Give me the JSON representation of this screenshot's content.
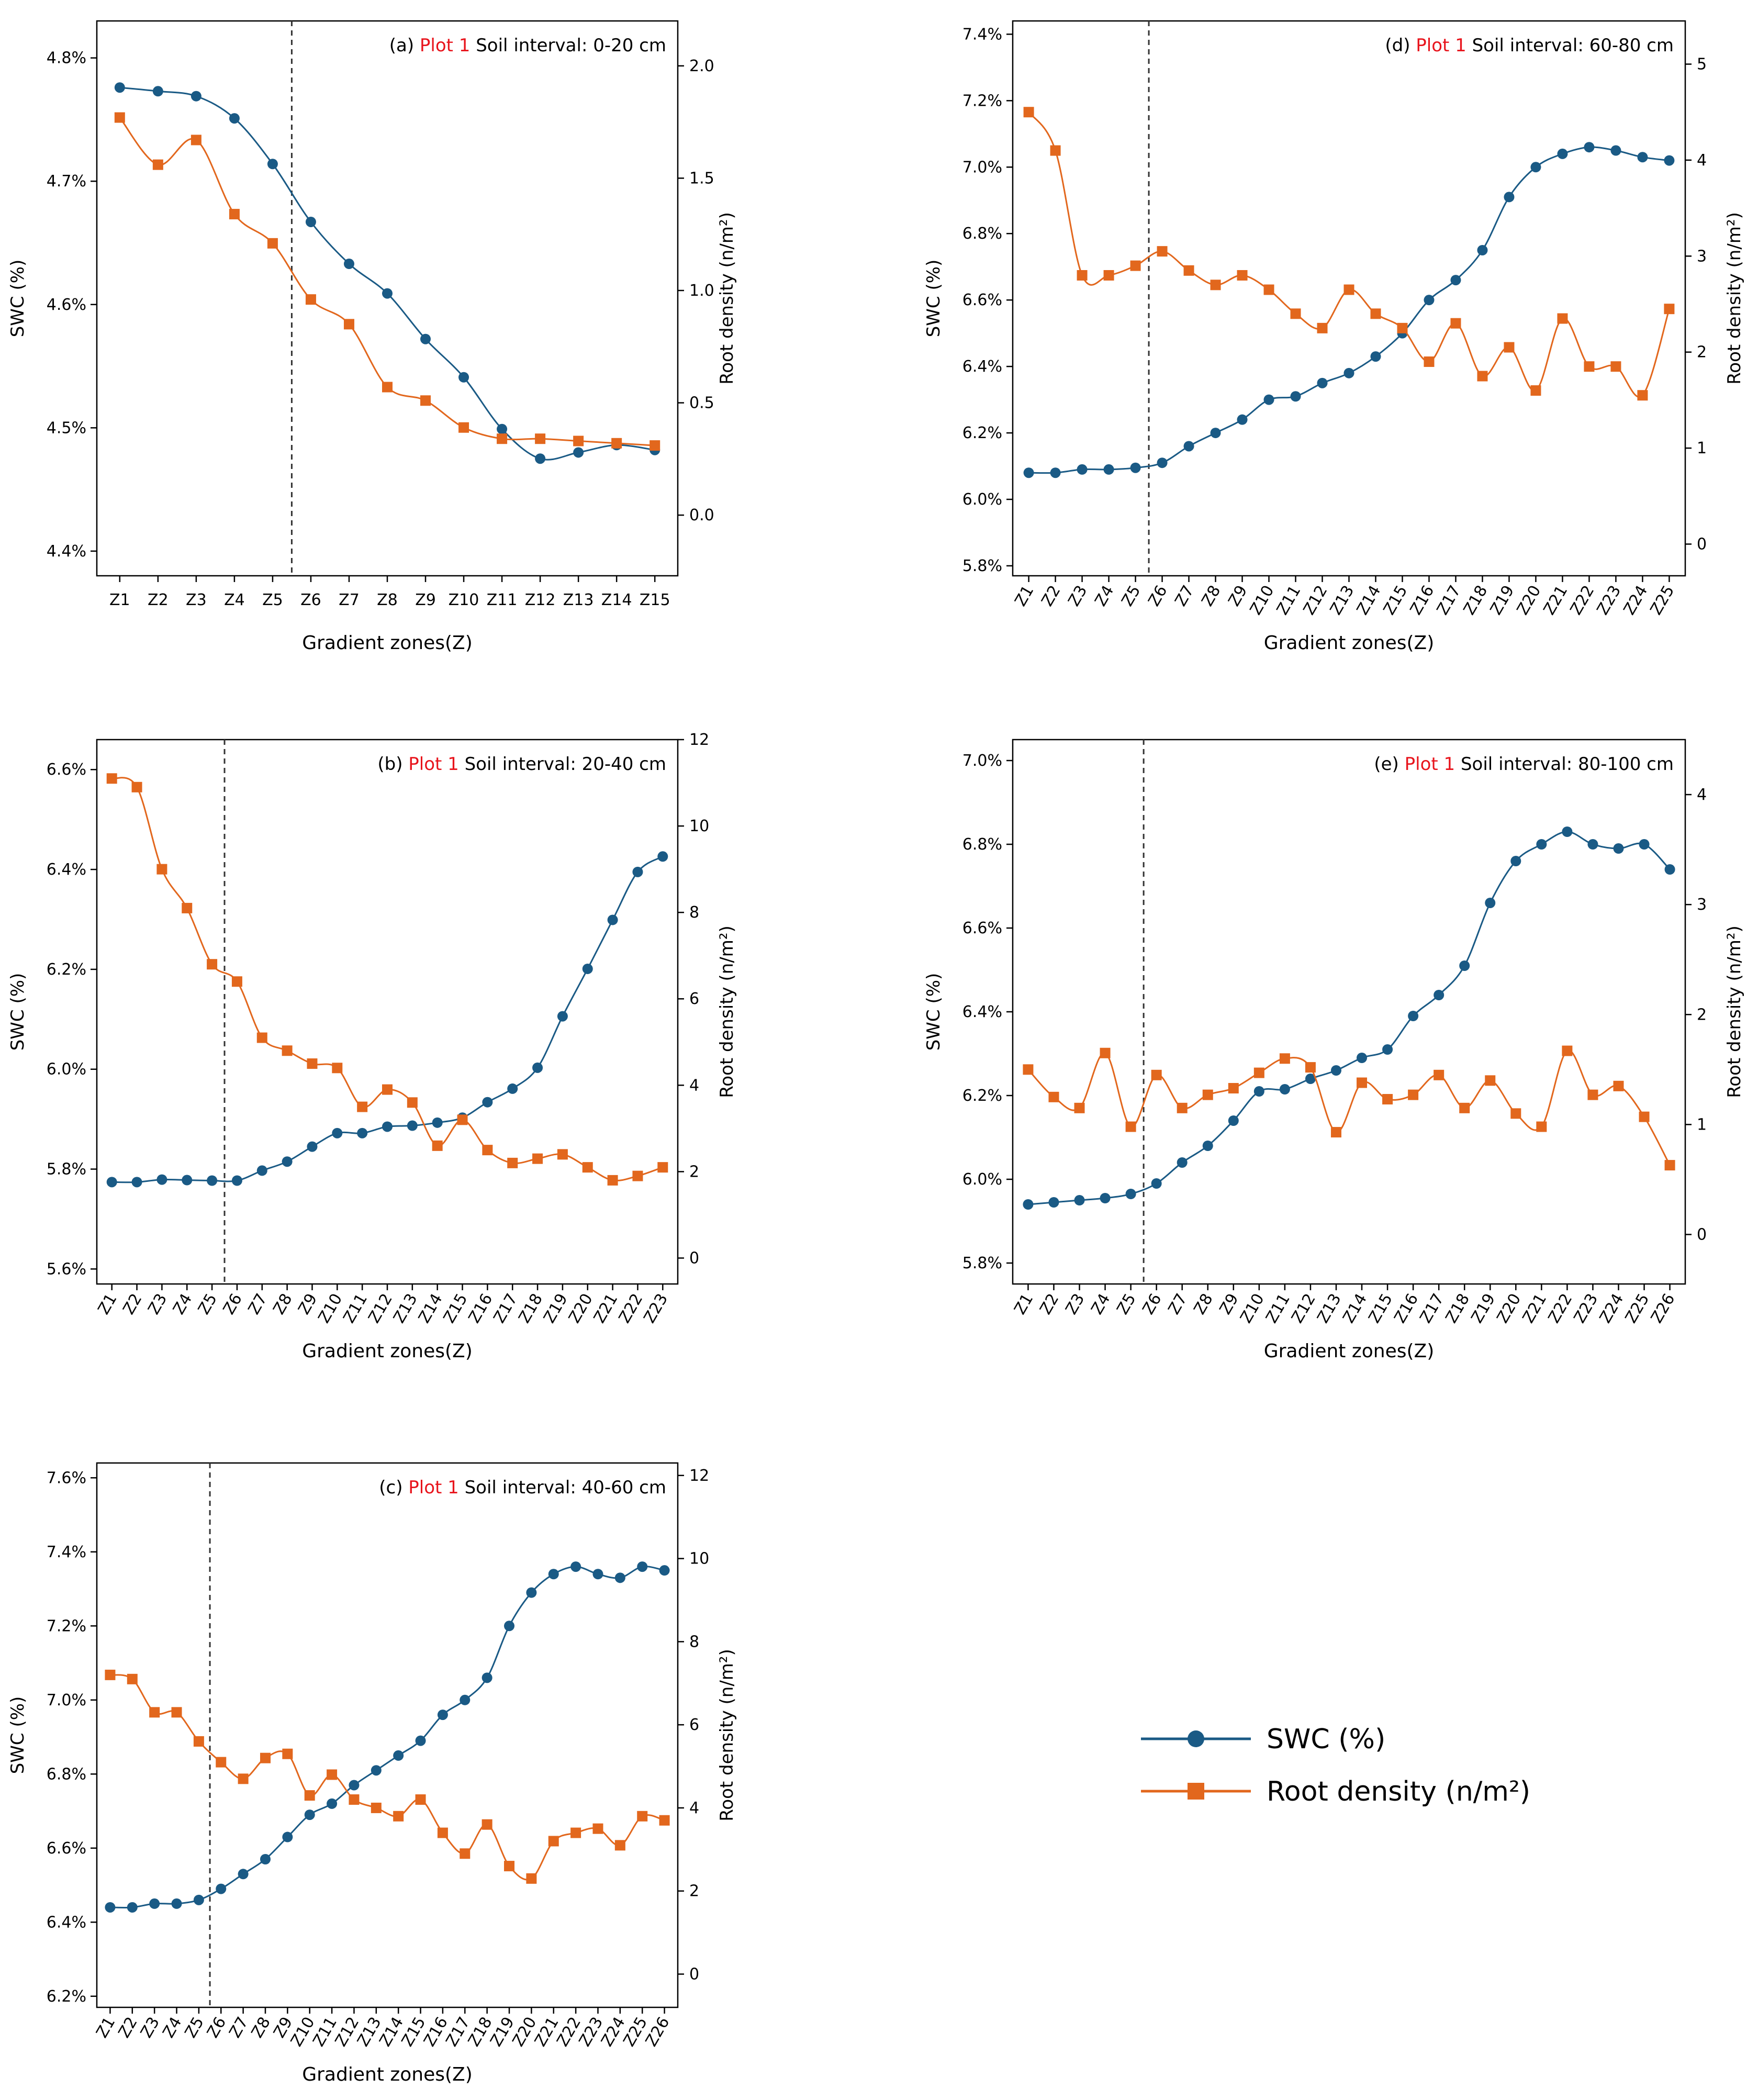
{
  "colors": {
    "swc": "#1a5a85",
    "root": "#e2671d",
    "plot_label": "#e8141c"
  },
  "legend": {
    "swc": "SWC (%)",
    "root": "Root density (n/m²)"
  },
  "chart_data": [
    {
      "id": "a",
      "type": "line",
      "panel_label": "(a)",
      "plot_label": "Plot 1",
      "interval_label": "Soil interval: 0-20 cm",
      "xlabel": "Gradient zones(Z)",
      "ylabel": "SWC (%)",
      "y2label": "Root density (n/m²)",
      "categories": [
        "Z1",
        "Z2",
        "Z3",
        "Z4",
        "Z5",
        "Z6",
        "Z7",
        "Z8",
        "Z9",
        "Z10",
        "Z11",
        "Z12",
        "Z13",
        "Z14",
        "Z15"
      ],
      "rotate_ticks": false,
      "divider_after": 5,
      "ylim": [
        4.38,
        4.83
      ],
      "yticks": [
        4.4,
        4.5,
        4.6,
        4.7,
        4.8
      ],
      "ytick_labels": [
        "4.4%",
        "4.5%",
        "4.6%",
        "4.7%",
        "4.8%"
      ],
      "y2lim": [
        -0.27,
        2.2
      ],
      "y2ticks": [
        0,
        0.5,
        1,
        1.5,
        2
      ],
      "y2tick_labels": [
        "0.0",
        "0.5",
        "1.0",
        "1.5",
        "2.0"
      ],
      "series": [
        {
          "name": "SWC (%)",
          "axis": "left",
          "values": [
            4.776,
            4.773,
            4.769,
            4.751,
            4.714,
            4.667,
            4.633,
            4.609,
            4.572,
            4.541,
            4.499,
            4.475,
            4.48,
            4.486,
            4.482
          ]
        },
        {
          "name": "Root density (n/m²)",
          "axis": "right",
          "values": [
            1.77,
            1.56,
            1.67,
            1.34,
            1.21,
            0.96,
            0.85,
            0.57,
            0.51,
            0.39,
            0.34,
            0.34,
            0.33,
            0.32,
            0.31
          ]
        }
      ]
    },
    {
      "id": "b",
      "type": "line",
      "panel_label": "(b)",
      "plot_label": "Plot 1",
      "interval_label": "Soil interval: 20-40 cm",
      "xlabel": "Gradient zones(Z)",
      "ylabel": "SWC (%)",
      "y2label": "Root density (n/m²)",
      "categories": [
        "Z1",
        "Z2",
        "Z3",
        "Z4",
        "Z5",
        "Z6",
        "Z7",
        "Z8",
        "Z9",
        "Z10",
        "Z11",
        "Z12",
        "Z13",
        "Z14",
        "Z15",
        "Z16",
        "Z17",
        "Z18",
        "Z19",
        "Z20",
        "Z21",
        "Z22",
        "Z23"
      ],
      "rotate_ticks": true,
      "divider_after": 5,
      "ylim": [
        5.57,
        6.66
      ],
      "yticks": [
        5.6,
        5.8,
        6.0,
        6.2,
        6.4,
        6.6
      ],
      "ytick_labels": [
        "5.6%",
        "5.8%",
        "6.0%",
        "6.2%",
        "6.4%",
        "6.6%"
      ],
      "y2lim": [
        -0.6,
        12.0
      ],
      "y2ticks": [
        0,
        2,
        4,
        6,
        8,
        10,
        12
      ],
      "y2tick_labels": [
        "0",
        "2",
        "4",
        "6",
        "8",
        "10",
        "12"
      ],
      "series": [
        {
          "name": "SWC (%)",
          "axis": "left",
          "values": [
            5.774,
            5.774,
            5.779,
            5.778,
            5.777,
            5.777,
            5.797,
            5.815,
            5.845,
            5.872,
            5.872,
            5.885,
            5.887,
            5.893,
            5.903,
            5.934,
            5.961,
            6.003,
            6.106,
            6.201,
            6.299,
            6.395,
            6.426
          ]
        },
        {
          "name": "Root density (n/m²)",
          "axis": "right",
          "values": [
            11.1,
            10.9,
            9.0,
            8.1,
            6.8,
            6.4,
            5.1,
            4.8,
            4.5,
            4.4,
            3.5,
            3.9,
            3.6,
            2.6,
            3.2,
            2.5,
            2.2,
            2.3,
            2.4,
            2.1,
            1.8,
            1.9,
            2.1
          ]
        }
      ]
    },
    {
      "id": "c",
      "type": "line",
      "panel_label": "(c)",
      "plot_label": "Plot 1",
      "interval_label": "Soil interval: 40-60 cm",
      "xlabel": "Gradient zones(Z)",
      "ylabel": "SWC (%)",
      "y2label": "Root density (n/m²)",
      "categories": [
        "Z1",
        "Z2",
        "Z3",
        "Z4",
        "Z5",
        "Z6",
        "Z7",
        "Z8",
        "Z9",
        "Z10",
        "Z11",
        "Z12",
        "Z13",
        "Z14",
        "Z15",
        "Z16",
        "Z17",
        "Z18",
        "Z19",
        "Z20",
        "Z21",
        "Z22",
        "Z23",
        "Z24",
        "Z25",
        "Z26"
      ],
      "rotate_ticks": true,
      "divider_after": 5,
      "ylim": [
        6.17,
        7.64
      ],
      "yticks": [
        6.2,
        6.4,
        6.6,
        6.8,
        7.0,
        7.2,
        7.4,
        7.6
      ],
      "ytick_labels": [
        "6.2%",
        "6.4%",
        "6.6%",
        "6.8%",
        "7.0%",
        "7.2%",
        "7.4%",
        "7.6%"
      ],
      "y2lim": [
        -0.8,
        12.3
      ],
      "y2ticks": [
        0,
        2,
        4,
        6,
        8,
        10,
        12
      ],
      "y2tick_labels": [
        "0",
        "2",
        "4",
        "6",
        "8",
        "10",
        "12"
      ],
      "series": [
        {
          "name": "SWC (%)",
          "axis": "left",
          "values": [
            6.44,
            6.44,
            6.45,
            6.45,
            6.46,
            6.49,
            6.53,
            6.57,
            6.63,
            6.69,
            6.72,
            6.77,
            6.81,
            6.85,
            6.89,
            6.96,
            7.0,
            7.06,
            7.2,
            7.29,
            7.34,
            7.36,
            7.34,
            7.33,
            7.36,
            7.35
          ]
        },
        {
          "name": "Root density (n/m²)",
          "axis": "right",
          "values": [
            7.2,
            7.1,
            6.3,
            6.3,
            5.6,
            5.1,
            4.7,
            5.2,
            5.3,
            4.3,
            4.8,
            4.2,
            4.0,
            3.8,
            4.2,
            3.4,
            2.9,
            3.6,
            2.6,
            2.3,
            3.2,
            3.4,
            3.5,
            3.1,
            3.8,
            3.7
          ]
        }
      ]
    },
    {
      "id": "d",
      "type": "line",
      "panel_label": "(d)",
      "plot_label": "Plot 1",
      "interval_label": "Soil interval: 60-80 cm",
      "xlabel": "Gradient zones(Z)",
      "ylabel": "SWC (%)",
      "y2label": "Root density (n/m²)",
      "categories": [
        "Z1",
        "Z2",
        "Z3",
        "Z4",
        "Z5",
        "Z6",
        "Z7",
        "Z8",
        "Z9",
        "Z10",
        "Z11",
        "Z12",
        "Z13",
        "Z14",
        "Z15",
        "Z16",
        "Z17",
        "Z18",
        "Z19",
        "Z20",
        "Z21",
        "Z22",
        "Z23",
        "Z24",
        "Z25"
      ],
      "rotate_ticks": true,
      "divider_after": 5,
      "ylim": [
        5.77,
        7.44
      ],
      "yticks": [
        5.8,
        6.0,
        6.2,
        6.4,
        6.6,
        6.8,
        7.0,
        7.2,
        7.4
      ],
      "ytick_labels": [
        "5.8%",
        "6.0%",
        "6.2%",
        "6.4%",
        "6.6%",
        "6.8%",
        "7.0%",
        "7.2%",
        "7.4%"
      ],
      "y2lim": [
        -0.33,
        5.45
      ],
      "y2ticks": [
        0,
        1,
        2,
        3,
        4,
        5
      ],
      "y2tick_labels": [
        "0",
        "1",
        "2",
        "3",
        "4",
        "5"
      ],
      "series": [
        {
          "name": "SWC (%)",
          "axis": "left",
          "values": [
            6.08,
            6.08,
            6.09,
            6.09,
            6.095,
            6.11,
            6.16,
            6.2,
            6.24,
            6.3,
            6.31,
            6.35,
            6.38,
            6.43,
            6.5,
            6.6,
            6.66,
            6.75,
            6.91,
            7.0,
            7.04,
            7.06,
            7.05,
            7.03,
            7.02
          ]
        },
        {
          "name": "Root density (n/m²)",
          "axis": "right",
          "values": [
            4.5,
            4.1,
            2.8,
            2.8,
            2.9,
            3.05,
            2.85,
            2.7,
            2.8,
            2.65,
            2.4,
            2.25,
            2.65,
            2.4,
            2.25,
            1.9,
            2.3,
            1.75,
            2.05,
            1.6,
            2.35,
            1.85,
            1.85,
            1.55,
            2.45
          ]
        }
      ]
    },
    {
      "id": "e",
      "type": "line",
      "panel_label": "(e)",
      "plot_label": "Plot 1",
      "interval_label": "Soil interval: 80-100 cm",
      "xlabel": "Gradient zones(Z)",
      "ylabel": "SWC (%)",
      "y2label": "Root density (n/m²)",
      "categories": [
        "Z1",
        "Z2",
        "Z3",
        "Z4",
        "Z5",
        "Z6",
        "Z7",
        "Z8",
        "Z9",
        "Z10",
        "Z11",
        "Z12",
        "Z13",
        "Z14",
        "Z15",
        "Z16",
        "Z17",
        "Z18",
        "Z19",
        "Z20",
        "Z21",
        "Z22",
        "Z23",
        "Z24",
        "Z25",
        "Z26"
      ],
      "rotate_ticks": true,
      "divider_after": 5,
      "ylim": [
        5.75,
        7.05
      ],
      "yticks": [
        5.8,
        6.0,
        6.2,
        6.4,
        6.6,
        6.8,
        7.0
      ],
      "ytick_labels": [
        "5.8%",
        "6.0%",
        "6.2%",
        "6.4%",
        "6.6%",
        "6.8%",
        "7.0%"
      ],
      "y2lim": [
        -0.45,
        4.5
      ],
      "y2ticks": [
        0,
        1,
        2,
        3,
        4
      ],
      "y2tick_labels": [
        "0",
        "1",
        "2",
        "3",
        "4"
      ],
      "series": [
        {
          "name": "SWC (%)",
          "axis": "left",
          "values": [
            5.94,
            5.945,
            5.95,
            5.955,
            5.965,
            5.99,
            6.04,
            6.08,
            6.14,
            6.21,
            6.215,
            6.24,
            6.26,
            6.29,
            6.31,
            6.39,
            6.44,
            6.51,
            6.66,
            6.76,
            6.8,
            6.83,
            6.8,
            6.79,
            6.8,
            6.74
          ]
        },
        {
          "name": "Root density (n/m²)",
          "axis": "right",
          "values": [
            1.5,
            1.25,
            1.15,
            1.65,
            0.98,
            1.45,
            1.15,
            1.27,
            1.33,
            1.47,
            1.6,
            1.52,
            0.93,
            1.38,
            1.23,
            1.27,
            1.45,
            1.15,
            1.4,
            1.1,
            0.98,
            1.67,
            1.27,
            1.35,
            1.07,
            0.63
          ]
        }
      ]
    }
  ]
}
